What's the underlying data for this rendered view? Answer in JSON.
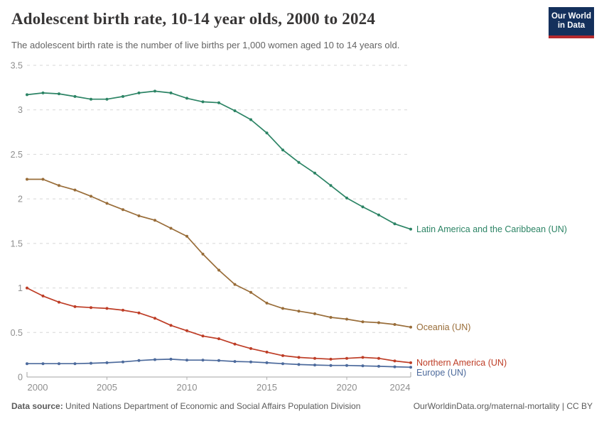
{
  "header": {
    "title": "Adolescent birth rate, 10-14 year olds, 2000 to 2024",
    "subtitle": "The adolescent birth rate is the number of live births per 1,000 women aged 10 to 14 years old."
  },
  "logo": {
    "line1": "Our World",
    "line2": "in Data"
  },
  "footer": {
    "source_label": "Data source:",
    "source_text": " United Nations Department of Economic and Social Affairs Population Division",
    "credit": "OurWorldinData.org/maternal-mortality | CC BY"
  },
  "chart_data": {
    "type": "line",
    "title": "Adolescent birth rate, 10-14 year olds, 2000 to 2024",
    "xlabel": "",
    "ylabel": "",
    "xlim": [
      2000,
      2024
    ],
    "ylim": [
      0,
      3.5
    ],
    "yticks": [
      0,
      0.5,
      1,
      1.5,
      2,
      2.5,
      3,
      3.5
    ],
    "xticks": [
      2000,
      2005,
      2010,
      2015,
      2020,
      2024
    ],
    "grid": "horizontal-dashed",
    "legend_position": "end-of-line-labels",
    "x": [
      2000,
      2001,
      2002,
      2003,
      2004,
      2005,
      2006,
      2007,
      2008,
      2009,
      2010,
      2011,
      2012,
      2013,
      2014,
      2015,
      2016,
      2017,
      2018,
      2019,
      2020,
      2021,
      2022,
      2023,
      2024
    ],
    "series": [
      {
        "name": "Latin America and the Caribbean (UN)",
        "color": "#2C8465",
        "values": [
          3.17,
          3.19,
          3.18,
          3.15,
          3.12,
          3.12,
          3.15,
          3.19,
          3.21,
          3.19,
          3.13,
          3.09,
          3.08,
          2.99,
          2.89,
          2.74,
          2.55,
          2.41,
          2.29,
          2.15,
          2.01,
          1.91,
          1.82,
          1.72,
          1.66
        ]
      },
      {
        "name": "Oceania (UN)",
        "color": "#996D39",
        "values": [
          2.22,
          2.22,
          2.15,
          2.1,
          2.03,
          1.95,
          1.88,
          1.81,
          1.76,
          1.67,
          1.58,
          1.38,
          1.2,
          1.04,
          0.95,
          0.83,
          0.77,
          0.74,
          0.71,
          0.67,
          0.65,
          0.62,
          0.61,
          0.59,
          0.56
        ]
      },
      {
        "name": "Northern America (UN)",
        "color": "#BE3D26",
        "values": [
          1.0,
          0.91,
          0.84,
          0.79,
          0.78,
          0.77,
          0.75,
          0.72,
          0.66,
          0.58,
          0.52,
          0.46,
          0.43,
          0.37,
          0.32,
          0.28,
          0.24,
          0.22,
          0.21,
          0.2,
          0.21,
          0.22,
          0.21,
          0.18,
          0.16
        ]
      },
      {
        "name": "Europe (UN)",
        "color": "#4C6A9C",
        "values": [
          0.15,
          0.15,
          0.15,
          0.15,
          0.155,
          0.16,
          0.17,
          0.185,
          0.195,
          0.2,
          0.19,
          0.19,
          0.185,
          0.175,
          0.17,
          0.16,
          0.15,
          0.14,
          0.135,
          0.13,
          0.13,
          0.125,
          0.12,
          0.115,
          0.11
        ]
      }
    ]
  }
}
